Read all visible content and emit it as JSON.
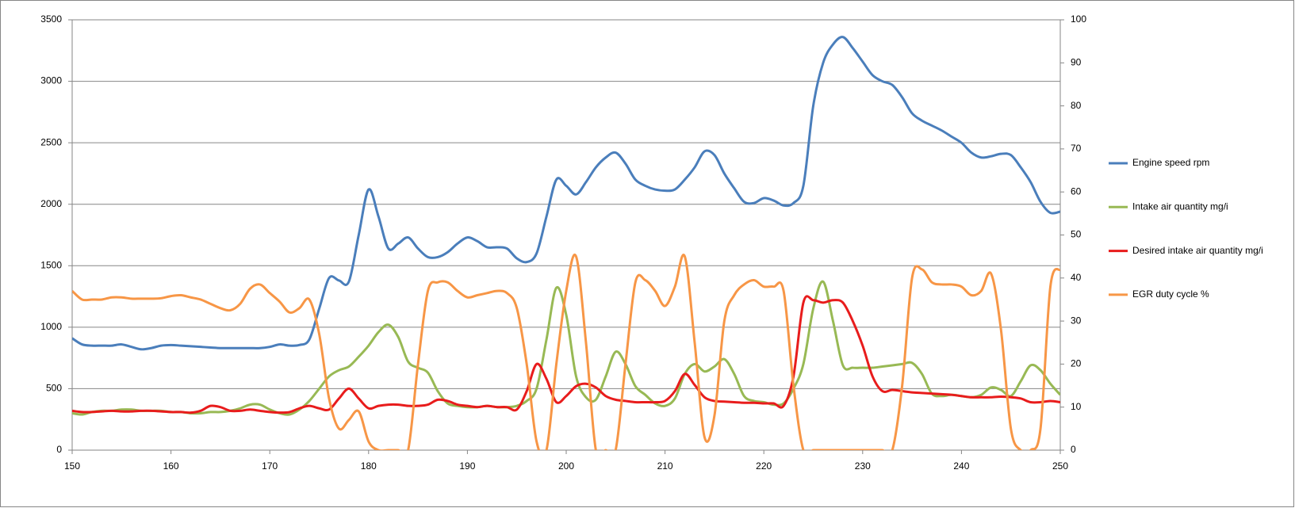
{
  "chart_data": {
    "type": "line",
    "x": [
      150,
      151,
      152,
      153,
      154,
      155,
      156,
      157,
      158,
      159,
      160,
      161,
      162,
      163,
      164,
      165,
      166,
      167,
      168,
      169,
      170,
      171,
      172,
      173,
      174,
      175,
      176,
      177,
      178,
      179,
      180,
      181,
      182,
      183,
      184,
      185,
      186,
      187,
      188,
      189,
      190,
      191,
      192,
      193,
      194,
      195,
      196,
      197,
      198,
      199,
      200,
      201,
      202,
      203,
      204,
      205,
      206,
      207,
      208,
      209,
      210,
      211,
      212,
      213,
      214,
      215,
      216,
      217,
      218,
      219,
      220,
      221,
      222,
      223,
      224,
      225,
      226,
      227,
      228,
      229,
      230,
      231,
      232,
      233,
      234,
      235,
      236,
      237,
      238,
      239,
      240,
      241,
      242,
      243,
      244,
      245,
      246,
      247,
      248,
      249,
      250
    ],
    "series": [
      {
        "name": "Engine speed rpm",
        "color": "#4a7ebb",
        "axis": "y",
        "values": [
          910,
          860,
          850,
          850,
          850,
          860,
          840,
          820,
          830,
          850,
          855,
          850,
          845,
          840,
          835,
          830,
          830,
          830,
          830,
          830,
          840,
          860,
          850,
          855,
          900,
          1150,
          1400,
          1380,
          1370,
          1750,
          2120,
          1900,
          1640,
          1680,
          1730,
          1640,
          1570,
          1570,
          1610,
          1680,
          1730,
          1700,
          1650,
          1650,
          1640,
          1560,
          1530,
          1600,
          1900,
          2200,
          2150,
          2080,
          2180,
          2300,
          2380,
          2420,
          2330,
          2200,
          2150,
          2120,
          2110,
          2120,
          2200,
          2300,
          2430,
          2400,
          2250,
          2130,
          2020,
          2010,
          2050,
          2030,
          1990,
          2010,
          2150,
          2800,
          3150,
          3300,
          3360,
          3270,
          3160,
          3050,
          3000,
          2970,
          2870,
          2740,
          2680,
          2640,
          2600,
          2550,
          2500,
          2420,
          2380,
          2390,
          2410,
          2400,
          2300,
          2180,
          2020,
          1930,
          1940
        ]
      },
      {
        "name": "Intake air quantity mg/i",
        "color": "#98b954",
        "axis": "y",
        "values": [
          300,
          290,
          310,
          320,
          320,
          330,
          330,
          320,
          320,
          320,
          310,
          310,
          300,
          300,
          310,
          310,
          320,
          340,
          370,
          370,
          330,
          300,
          290,
          330,
          400,
          500,
          600,
          650,
          680,
          760,
          850,
          960,
          1020,
          920,
          720,
          670,
          630,
          480,
          380,
          360,
          350,
          350,
          360,
          350,
          350,
          360,
          400,
          500,
          900,
          1320,
          1100,
          600,
          430,
          410,
          600,
          800,
          700,
          520,
          450,
          380,
          360,
          420,
          620,
          700,
          640,
          680,
          740,
          620,
          440,
          400,
          390,
          370,
          380,
          500,
          700,
          1150,
          1370,
          1050,
          690,
          670,
          670,
          670,
          680,
          690,
          700,
          710,
          620,
          460,
          440,
          450,
          440,
          430,
          450,
          510,
          490,
          440,
          560,
          690,
          650,
          540,
          450
        ]
      },
      {
        "name": "Desired intake air quantity mg/i",
        "color": "#e81c1c",
        "axis": "y",
        "values": [
          320,
          310,
          310,
          315,
          320,
          315,
          315,
          320,
          320,
          315,
          310,
          310,
          305,
          320,
          360,
          350,
          320,
          320,
          330,
          320,
          310,
          305,
          310,
          340,
          360,
          340,
          330,
          420,
          500,
          420,
          340,
          360,
          370,
          370,
          360,
          360,
          370,
          410,
          400,
          370,
          360,
          350,
          360,
          350,
          350,
          330,
          480,
          700,
          580,
          390,
          440,
          520,
          540,
          510,
          440,
          410,
          400,
          390,
          390,
          390,
          400,
          480,
          620,
          530,
          430,
          400,
          395,
          390,
          385,
          385,
          380,
          380,
          360,
          600,
          1200,
          1220,
          1200,
          1220,
          1200,
          1050,
          850,
          600,
          480,
          490,
          480,
          470,
          465,
          460,
          455,
          450,
          440,
          430,
          430,
          430,
          435,
          430,
          420,
          390,
          390,
          400,
          390
        ]
      },
      {
        "name": "EGR duty cycle %",
        "color": "#f79646",
        "axis": "y2",
        "values": [
          37,
          35,
          35,
          35,
          35.5,
          35.5,
          35.2,
          35.2,
          35.2,
          35.3,
          35.8,
          36,
          35.5,
          35,
          34,
          33,
          32.5,
          34,
          37.5,
          38.5,
          36.5,
          34.5,
          32,
          33,
          35,
          27,
          12,
          5,
          7,
          9,
          2,
          0,
          0,
          0,
          0,
          20,
          37,
          39,
          39,
          37,
          35.5,
          36,
          36.5,
          37,
          36.5,
          33,
          20,
          2,
          0,
          20,
          37,
          45,
          25,
          0,
          0,
          0,
          20,
          39,
          39.5,
          37,
          33.5,
          38,
          45,
          25,
          3,
          8,
          30,
          36,
          38.5,
          39.5,
          38,
          38,
          37,
          15,
          0,
          0,
          0,
          0,
          0,
          0,
          0,
          0,
          0,
          0,
          15,
          40,
          42,
          39,
          38.5,
          38.5,
          38,
          36,
          37,
          41,
          28,
          5,
          0,
          0,
          5,
          38,
          42
        ]
      }
    ],
    "xlim": [
      150,
      250
    ],
    "xticks": [
      150,
      160,
      170,
      180,
      190,
      200,
      210,
      220,
      230,
      240,
      250
    ],
    "ylim": [
      0,
      3500
    ],
    "yticks": [
      0,
      500,
      1000,
      1500,
      2000,
      2500,
      3000,
      3500
    ],
    "y2lim": [
      0,
      100
    ],
    "y2ticks": [
      0,
      10,
      20,
      30,
      40,
      50,
      60,
      70,
      80,
      90,
      100
    ],
    "grid": true,
    "legend": "right"
  }
}
